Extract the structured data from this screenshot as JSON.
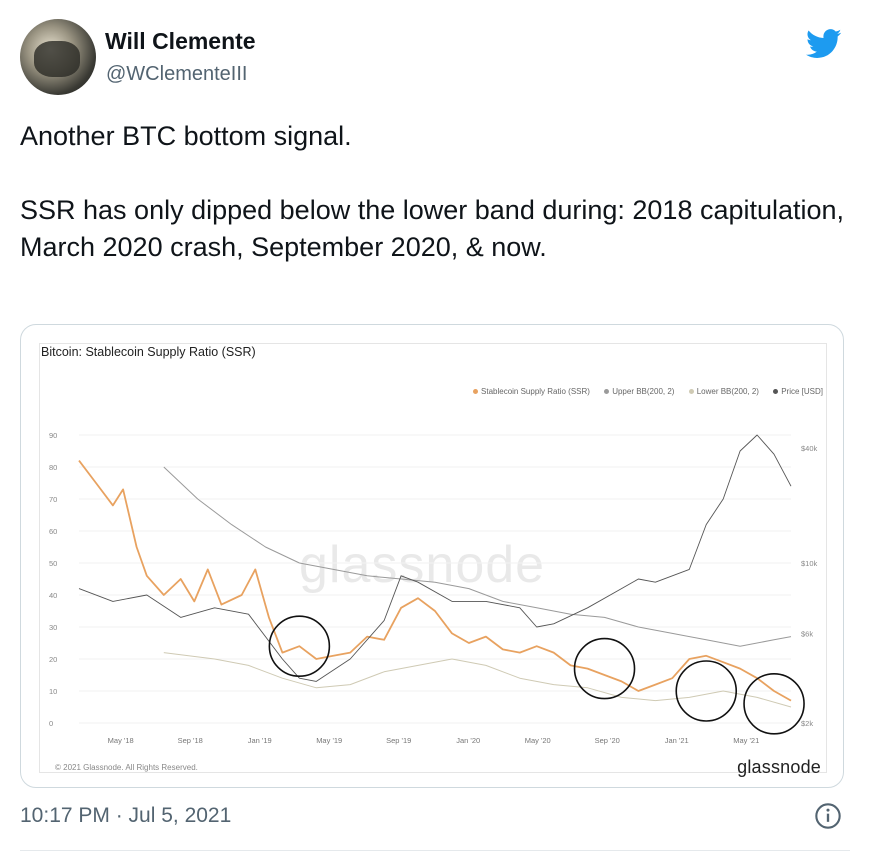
{
  "tweet": {
    "author_name": "Will Clemente",
    "author_handle": "@WClementeIII",
    "text_line1": "Another BTC bottom signal.",
    "text_line2": "SSR has only dipped below the lower band during: 2018 capitulation, March 2020 crash, September 2020, & now.",
    "timestamp": "10:17 PM · Jul 5, 2021",
    "icons": {
      "logo": "twitter-bird-icon",
      "info": "info-icon"
    },
    "colors": {
      "bird": "#1d9bf0",
      "ssr": "#e8a260",
      "upper": "#9a9a9a",
      "lower": "#e3dfc9",
      "price": "#4a4a4a"
    }
  },
  "chart_data": {
    "type": "line",
    "title": "Bitcoin: Stablecoin Supply Ratio (SSR)",
    "watermark": "glassnode",
    "brand": "glassnode",
    "copyright": "© 2021 Glassnode. All Rights Reserved.",
    "x_ticks": [
      "May '18",
      "Sep '18",
      "Jan '19",
      "May '19",
      "Sep '19",
      "Jan '20",
      "May '20",
      "Sep '20",
      "Jan '21",
      "May '21"
    ],
    "y_left_ticks": [
      0,
      10,
      20,
      30,
      40,
      50,
      60,
      70,
      80,
      90
    ],
    "y_right_ticks": [
      "$2k",
      "$6k",
      "$10k",
      "$40k"
    ],
    "ylim": [
      0,
      90
    ],
    "legend": [
      {
        "name": "Stablecoin Supply Ratio (SSR)",
        "color": "#e8a260"
      },
      {
        "name": "Upper BB(200, 2)",
        "color": "#9a9a9a"
      },
      {
        "name": "Lower BB(200, 2)",
        "color": "#cfcab4"
      },
      {
        "name": "Price [USD]",
        "color": "#555555"
      }
    ],
    "series": [
      {
        "name": "Stablecoin Supply Ratio (SSR)",
        "values": [
          [
            0,
            82
          ],
          [
            0.5,
            75
          ],
          [
            1,
            68
          ],
          [
            1.3,
            73
          ],
          [
            1.7,
            55
          ],
          [
            2,
            46
          ],
          [
            2.5,
            40
          ],
          [
            3,
            45
          ],
          [
            3.4,
            38
          ],
          [
            3.8,
            48
          ],
          [
            4.2,
            37
          ],
          [
            4.8,
            40
          ],
          [
            5.2,
            48
          ],
          [
            5.6,
            33
          ],
          [
            6,
            22
          ],
          [
            6.5,
            24
          ],
          [
            7,
            20
          ],
          [
            7.5,
            21
          ],
          [
            8,
            22
          ],
          [
            8.5,
            27
          ],
          [
            9,
            26
          ],
          [
            9.5,
            36
          ],
          [
            10,
            39
          ],
          [
            10.5,
            35
          ],
          [
            11,
            28
          ],
          [
            11.5,
            25
          ],
          [
            12,
            27
          ],
          [
            12.5,
            23
          ],
          [
            13,
            22
          ],
          [
            13.5,
            24
          ],
          [
            14,
            22
          ],
          [
            14.5,
            18
          ],
          [
            15,
            17
          ],
          [
            15.5,
            15
          ],
          [
            16,
            13
          ],
          [
            16.5,
            10
          ],
          [
            17,
            12
          ],
          [
            17.5,
            14
          ],
          [
            18,
            20
          ],
          [
            18.5,
            21
          ],
          [
            19,
            19
          ],
          [
            19.5,
            17
          ],
          [
            20,
            14
          ],
          [
            20.5,
            10
          ],
          [
            21,
            7
          ]
        ]
      },
      {
        "name": "Upper BB(200, 2)",
        "values": [
          [
            2.5,
            80
          ],
          [
            3.5,
            70
          ],
          [
            4.5,
            62
          ],
          [
            5.5,
            55
          ],
          [
            6.5,
            50
          ],
          [
            7.5,
            48
          ],
          [
            8.5,
            46
          ],
          [
            9.5,
            45
          ],
          [
            10.5,
            44
          ],
          [
            11.5,
            42
          ],
          [
            12.5,
            38
          ],
          [
            13.5,
            36
          ],
          [
            14.5,
            34
          ],
          [
            15.5,
            33
          ],
          [
            16.5,
            30
          ],
          [
            17.5,
            28
          ],
          [
            18.5,
            26
          ],
          [
            19.5,
            24
          ],
          [
            20.5,
            26
          ],
          [
            21,
            27
          ]
        ]
      },
      {
        "name": "Lower BB(200, 2)",
        "values": [
          [
            2.5,
            22
          ],
          [
            4,
            20
          ],
          [
            5,
            18
          ],
          [
            6,
            14
          ],
          [
            7,
            11
          ],
          [
            8,
            12
          ],
          [
            9,
            16
          ],
          [
            10,
            18
          ],
          [
            11,
            20
          ],
          [
            12,
            18
          ],
          [
            13,
            14
          ],
          [
            14,
            12
          ],
          [
            15,
            11
          ],
          [
            16,
            8
          ],
          [
            17,
            7
          ],
          [
            18,
            8
          ],
          [
            19,
            10
          ],
          [
            20,
            8
          ],
          [
            21,
            5
          ]
        ]
      },
      {
        "name": "Price [USD]",
        "values": [
          [
            0,
            42
          ],
          [
            1,
            38
          ],
          [
            2,
            40
          ],
          [
            3,
            33
          ],
          [
            4,
            36
          ],
          [
            5,
            34
          ],
          [
            6,
            20
          ],
          [
            6.5,
            14
          ],
          [
            7,
            13
          ],
          [
            8,
            20
          ],
          [
            9,
            32
          ],
          [
            9.5,
            46
          ],
          [
            10,
            44
          ],
          [
            11,
            38
          ],
          [
            12,
            38
          ],
          [
            13,
            36
          ],
          [
            13.5,
            30
          ],
          [
            14,
            31
          ],
          [
            15,
            36
          ],
          [
            16,
            42
          ],
          [
            16.5,
            45
          ],
          [
            17,
            44
          ],
          [
            18,
            48
          ],
          [
            18.5,
            62
          ],
          [
            19,
            70
          ],
          [
            19.5,
            85
          ],
          [
            20,
            90
          ],
          [
            20.5,
            84
          ],
          [
            21,
            74
          ]
        ]
      }
    ],
    "highlights": [
      {
        "label": "2018 capitulation",
        "x": 6.5,
        "y": 24
      },
      {
        "label": "March 2020 crash",
        "x": 15.5,
        "y": 17
      },
      {
        "label": "September 2020",
        "x": 18.5,
        "y": 10
      },
      {
        "label": "now",
        "x": 20.5,
        "y": 6
      }
    ]
  }
}
